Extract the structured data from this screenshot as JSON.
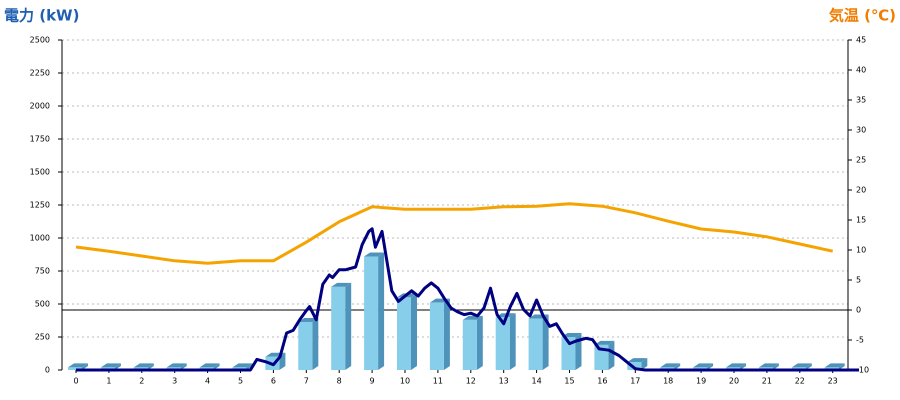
{
  "chart_data": {
    "type": "combo",
    "ylabel": "電力 (kW)",
    "y2label": "気温 (℃)",
    "categories": [
      "0",
      "1",
      "2",
      "3",
      "4",
      "5",
      "6",
      "7",
      "8",
      "9",
      "10",
      "11",
      "12",
      "13",
      "14",
      "15",
      "16",
      "17",
      "18",
      "19",
      "20",
      "21",
      "22",
      "23"
    ],
    "ylim": [
      0,
      2500
    ],
    "yticks": [
      0,
      250,
      500,
      750,
      1000,
      1250,
      1500,
      1750,
      2000,
      2250,
      2500
    ],
    "y2lim": [
      -10,
      45
    ],
    "y2ticks": [
      -10,
      -5,
      0,
      5,
      10,
      15,
      20,
      25,
      30,
      35,
      40,
      45
    ],
    "grid": true,
    "series": [
      {
        "type": "bar",
        "color": "#87ceeb",
        "side_color": "#4f93bb",
        "values": [
          20,
          20,
          20,
          20,
          20,
          20,
          100,
          364,
          630,
          860,
          550,
          510,
          380,
          400,
          390,
          250,
          190,
          60,
          20,
          20,
          20,
          20,
          20,
          20
        ]
      },
      {
        "type": "line",
        "axis": "y2",
        "color": "#f5a300",
        "values": [
          10.5,
          9.8,
          9,
          8.2,
          7.8,
          8.2,
          8.2,
          11.3,
          14.7,
          17.2,
          16.8,
          16.8,
          16.8,
          17.2,
          17.3,
          17.7,
          17.3,
          16.2,
          14.8,
          13.5,
          13,
          12.2,
          11,
          9.8
        ]
      },
      {
        "type": "line",
        "color": "#000080",
        "x": [
          0,
          5.3,
          5.5,
          5.8,
          6.0,
          6.2,
          6.4,
          6.6,
          6.8,
          7.0,
          7.1,
          7.3,
          7.5,
          7.7,
          7.8,
          8.0,
          8.2,
          8.5,
          8.7,
          8.9,
          9.0,
          9.1,
          9.3,
          9.6,
          9.8,
          10.0,
          10.2,
          10.4,
          10.6,
          10.8,
          11.0,
          11.2,
          11.4,
          11.6,
          11.8,
          12.0,
          12.2,
          12.4,
          12.6,
          12.8,
          13.0,
          13.2,
          13.4,
          13.6,
          13.8,
          14.0,
          14.2,
          14.4,
          14.6,
          14.8,
          15.0,
          15.2,
          15.5,
          15.7,
          15.9,
          16.2,
          16.5,
          16.8,
          17.0,
          17.3,
          23.8
        ],
        "values": [
          0,
          0,
          80,
          60,
          40,
          100,
          280,
          300,
          380,
          450,
          480,
          380,
          650,
          720,
          700,
          760,
          760,
          780,
          950,
          1050,
          1070,
          930,
          1050,
          600,
          520,
          560,
          600,
          560,
          620,
          660,
          620,
          540,
          470,
          440,
          420,
          430,
          410,
          470,
          620,
          420,
          350,
          480,
          580,
          460,
          410,
          530,
          410,
          330,
          350,
          270,
          200,
          220,
          240,
          230,
          160,
          150,
          110,
          50,
          10,
          0,
          0
        ]
      }
    ]
  }
}
